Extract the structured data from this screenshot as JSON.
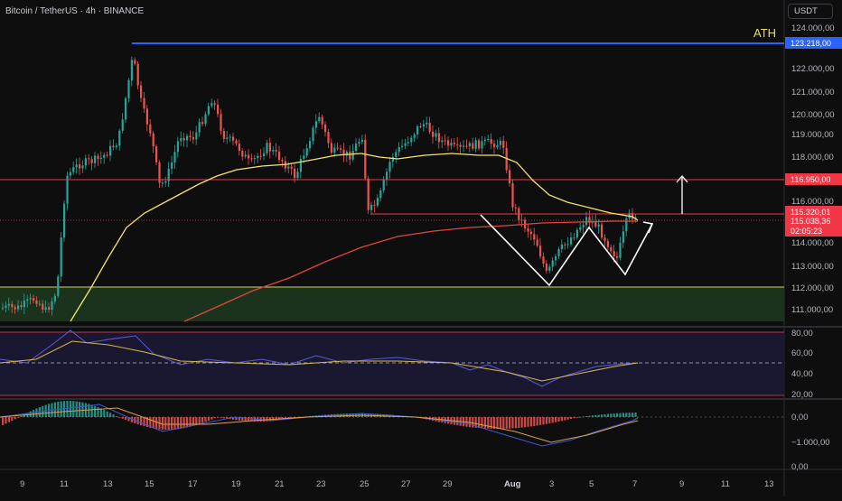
{
  "header": {
    "symbol": "Bitcoin / TetherUS · 4h · BINANCE",
    "currency_button": "USDT",
    "ath_label": "ATH"
  },
  "price_axis": {
    "ticks": [
      "124.000,00",
      "122.000,00",
      "121.000,00",
      "120.000,00",
      "119.000,00",
      "118.000,00",
      "116.000,00",
      "114.000,00",
      "113.000,00",
      "112.000,00",
      "111.000,00"
    ]
  },
  "price_labels": {
    "ath": "123.218,00",
    "resistance": "116.950,00",
    "level": "115.320,01",
    "current": "115.038,36",
    "timer": "02:05:23"
  },
  "rsi_axis": {
    "ticks": [
      "80,00",
      "60,00",
      "40,00",
      "20,00"
    ]
  },
  "macd_axis": {
    "ticks": [
      "0,00",
      "−1.000,00"
    ]
  },
  "bottom_axis": {
    "ticks": [
      "0,00"
    ]
  },
  "time_axis": {
    "labels": [
      "9",
      "11",
      "13",
      "15",
      "17",
      "19",
      "21",
      "23",
      "25",
      "27",
      "29",
      "Aug",
      "3",
      "5",
      "7",
      "9",
      "11",
      "13"
    ]
  },
  "colors": {
    "background": "#0e0e0e",
    "up": "#26a69a",
    "down": "#ef5350",
    "ath_line": "#2962ff",
    "resistance_line": "#f23645",
    "ma_fast": "#f5e56b",
    "ma_slow": "#e2453c",
    "demand_zone": "#1d3a1f",
    "zone_border": "#cfd66a"
  }
}
